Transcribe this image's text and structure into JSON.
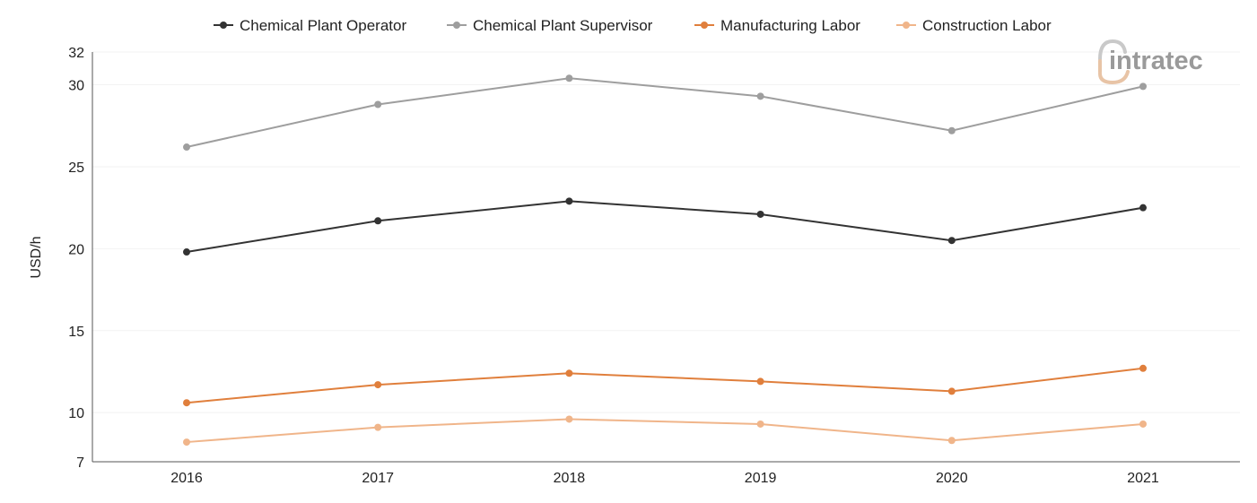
{
  "chart_data": {
    "type": "line",
    "title": "",
    "xlabel": "",
    "ylabel": "USD/h",
    "categories": [
      "2016",
      "2017",
      "2018",
      "2019",
      "2020",
      "2021"
    ],
    "ylim": [
      7,
      32
    ],
    "yticks": [
      7,
      10,
      15,
      20,
      25,
      30,
      32
    ],
    "grid": true,
    "legend_position": "top",
    "series": [
      {
        "name": "Chemical Plant Operator",
        "color": "#333333",
        "values": [
          19.8,
          21.7,
          22.9,
          22.1,
          20.5,
          22.5
        ]
      },
      {
        "name": "Chemical Plant Supervisor",
        "color": "#9e9e9e",
        "values": [
          26.2,
          28.8,
          30.4,
          29.3,
          27.2,
          29.9
        ]
      },
      {
        "name": "Manufacturing Labor",
        "color": "#e07f3c",
        "values": [
          10.6,
          11.7,
          12.4,
          11.9,
          11.3,
          12.7
        ]
      },
      {
        "name": "Construction Labor",
        "color": "#f0b58a",
        "values": [
          8.2,
          9.1,
          9.6,
          9.3,
          8.3,
          9.3
        ]
      }
    ]
  },
  "logo": {
    "text": "intratec",
    "text_color": "#9a9a9a",
    "mark_color": "#e8c4a6"
  }
}
